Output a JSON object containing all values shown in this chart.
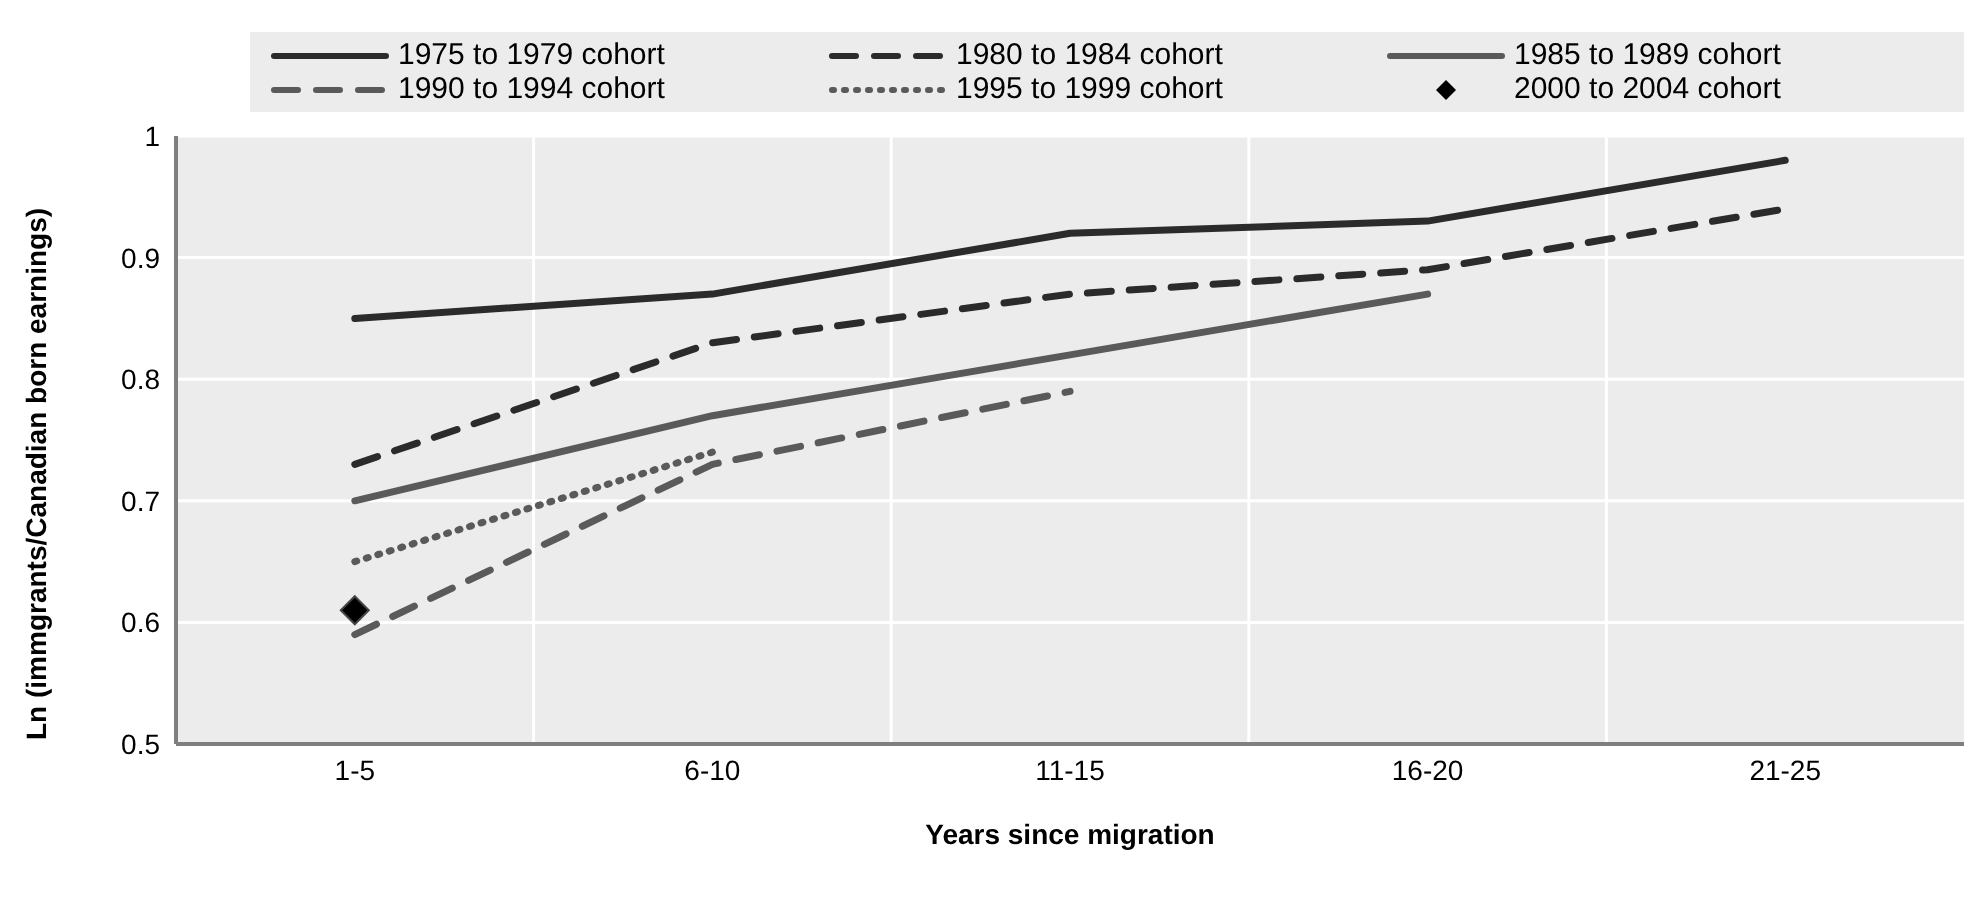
{
  "chart_data": {
    "type": "line",
    "xlabel": "Years since migration",
    "ylabel": "Ln (immgrants/Canadian born earnings)",
    "categories": [
      "1-5",
      "6-10",
      "11-15",
      "16-20",
      "21-25"
    ],
    "series": [
      {
        "name": "1975 to 1979 cohort",
        "color": "#2b2b2b",
        "line_style": "solid",
        "values": [
          0.85,
          0.87,
          0.92,
          0.93,
          0.98
        ]
      },
      {
        "name": "1980 to 1984 cohort",
        "color": "#2b2b2b",
        "line_style": "dashed",
        "values": [
          0.73,
          0.83,
          0.87,
          0.89,
          0.94
        ]
      },
      {
        "name": "1985 to 1989 cohort",
        "color": "#5a5a5a",
        "line_style": "solid",
        "values": [
          0.7,
          0.77,
          0.82,
          0.87,
          null
        ]
      },
      {
        "name": "1990 to 1994 cohort",
        "color": "#5a5a5a",
        "line_style": "dashed",
        "values": [
          0.59,
          0.73,
          0.79,
          null,
          null
        ]
      },
      {
        "name": "1995 to 1999 cohort",
        "color": "#5a5a5a",
        "line_style": "dotted",
        "values": [
          0.65,
          0.74,
          null,
          null,
          null
        ]
      },
      {
        "name": "2000 to 2004 cohort",
        "type": "scatter",
        "marker": "diamond",
        "color": "#000000",
        "values": [
          0.61,
          null,
          null,
          null,
          null
        ]
      }
    ],
    "ylim": [
      0.5,
      1
    ],
    "yticks": [
      0.5,
      0.6,
      0.7,
      0.8,
      0.9,
      1
    ],
    "grid": true,
    "legend": "top",
    "marker": "none"
  }
}
